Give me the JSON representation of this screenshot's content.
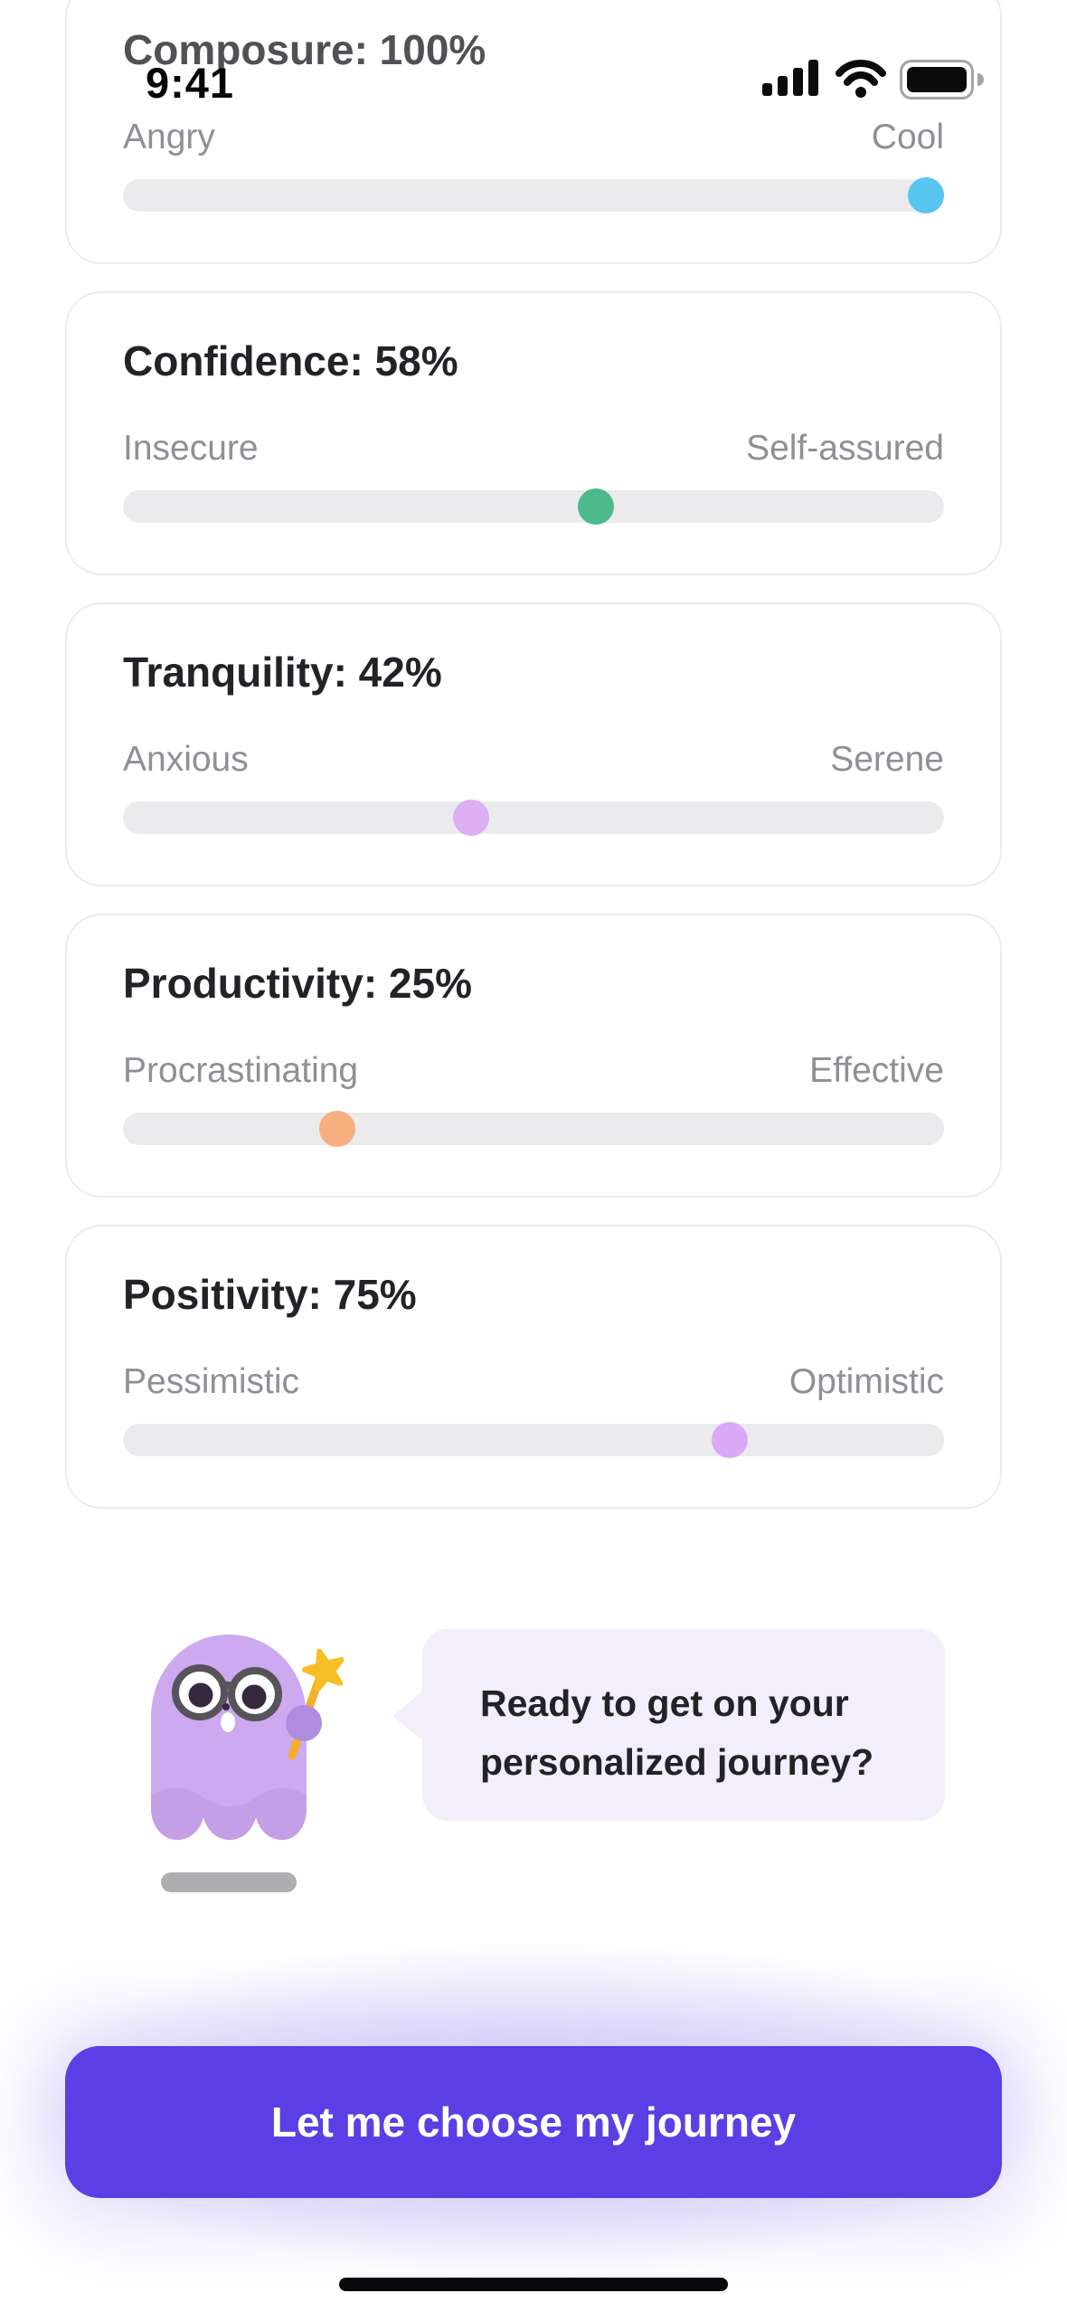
{
  "status_bar": {
    "time": "9:41"
  },
  "cards": [
    {
      "title": "Composure: 100%",
      "value": 100,
      "left_label": "Angry",
      "right_label": "Cool",
      "thumb_color": "#58C5F0"
    },
    {
      "title": "Confidence: 58%",
      "value": 58,
      "left_label": "Insecure",
      "right_label": "Self-assured",
      "thumb_color": "#4CBA8B"
    },
    {
      "title": "Tranquility: 42%",
      "value": 42,
      "left_label": "Anxious",
      "right_label": "Serene",
      "thumb_color": "#DCAEF2"
    },
    {
      "title": "Productivity: 25%",
      "value": 25,
      "left_label": "Procrastinating",
      "right_label": "Effective",
      "thumb_color": "#F9AE7F"
    },
    {
      "title": "Positivity: 75%",
      "value": 75,
      "left_label": "Pessimistic",
      "right_label": "Optimistic",
      "thumb_color": "#D9A9F4"
    }
  ],
  "mascot": {
    "speech_line1": "Ready to get on your",
    "speech_line2": "personalized journey?",
    "body_color": "#CDA9F0",
    "star_color": "#F7BE25"
  },
  "cta": {
    "label": "Let me choose my journey",
    "color": "#5B3FE4"
  }
}
